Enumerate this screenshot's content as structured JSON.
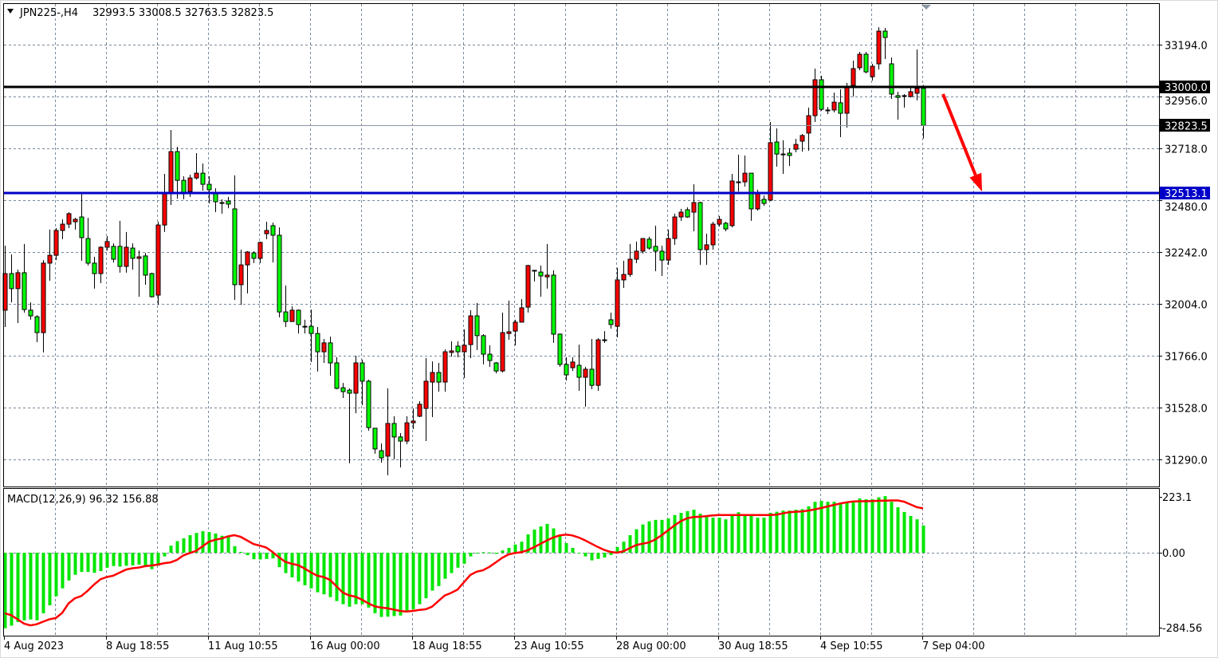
{
  "header": {
    "symbol_timeframe": "JPN225-,H4",
    "ohlc": "32993.5 33008.5 32763.5 32823.5"
  },
  "macd_header": {
    "label": "MACD(12,26,9) 96.32 156.88"
  },
  "colors": {
    "bull_candle": "#ff0000",
    "bear_candle": "#00ff00",
    "resistance_line": "#000000",
    "support_line": "#0000c8",
    "macd_histogram": "#00e600",
    "signal_line": "#ff0000",
    "arrow": "#ff0000",
    "grid": "#77889a"
  },
  "chart_data": [
    {
      "type": "candlestick",
      "symbol": "JPN225-",
      "timeframe": "H4",
      "ylim": [
        31180,
        33399
      ],
      "y_ticks": [
        "33194.0",
        "32956.0",
        "32718.0",
        "32480.0",
        "32242.0",
        "32004.0",
        "31766.0",
        "31528.0",
        "31290.0"
      ],
      "x_ticks": [
        "4 Aug 2023",
        "8 Aug 18:55",
        "11 Aug 10:55",
        "16 Aug 00:00",
        "18 Aug 18:55",
        "23 Aug 10:55",
        "28 Aug 00:00",
        "30 Aug 18:55",
        "4 Sep 10:55",
        "7 Sep 04:00"
      ],
      "x_tick_every_bars": 16,
      "grid": true,
      "horizontal_lines": [
        {
          "name": "resistance",
          "price": 33000.0,
          "label": "33000.0",
          "color": "#000000"
        },
        {
          "name": "support",
          "price": 32513.1,
          "label": "32513.1",
          "color": "#0000c8"
        }
      ],
      "bid_line": {
        "price": 32823.5,
        "label": "32823.5"
      },
      "arrow": {
        "from_bar": 147,
        "from_price": 32967,
        "to_bar": 153,
        "to_price": 32520,
        "color": "#ff0000"
      },
      "candles_ohlc": [
        [
          31975,
          32271,
          31898,
          32143
        ],
        [
          32143,
          32231,
          32011,
          32074
        ],
        [
          32074,
          32161,
          31916,
          32147
        ],
        [
          32147,
          32279,
          31964,
          31978
        ],
        [
          31975,
          32011,
          31931,
          31949
        ],
        [
          31945,
          31952,
          31828,
          31872
        ],
        [
          31872,
          32205,
          31781,
          32191
        ],
        [
          32191,
          32345,
          32110,
          32227
        ],
        [
          32227,
          32352,
          32205,
          32341
        ],
        [
          32341,
          32392,
          32301,
          32370
        ],
        [
          32370,
          32425,
          32352,
          32418
        ],
        [
          32381,
          32399,
          32345,
          32392
        ],
        [
          32403,
          32513,
          32202,
          32308
        ],
        [
          32304,
          32399,
          32180,
          32191
        ],
        [
          32191,
          32220,
          32074,
          32143
        ],
        [
          32143,
          32268,
          32099,
          32264
        ],
        [
          32264,
          32315,
          32249,
          32290
        ],
        [
          32268,
          32282,
          32194,
          32209
        ],
        [
          32268,
          32385,
          32147,
          32176
        ],
        [
          32176,
          32334,
          32147,
          32264
        ],
        [
          32260,
          32282,
          32161,
          32213
        ],
        [
          32213,
          32249,
          32037,
          32220
        ],
        [
          32224,
          32238,
          32092,
          32136
        ],
        [
          32143,
          32147,
          32033,
          32037
        ],
        [
          32044,
          32381,
          32000,
          32366
        ],
        [
          32366,
          32601,
          32334,
          32509
        ],
        [
          32509,
          32802,
          32458,
          32703
        ],
        [
          32703,
          32725,
          32487,
          32571
        ],
        [
          32571,
          32590,
          32484,
          32509
        ],
        [
          32520,
          32597,
          32495,
          32582
        ],
        [
          32582,
          32696,
          32575,
          32604
        ],
        [
          32604,
          32648,
          32524,
          32553
        ],
        [
          32553,
          32590,
          32465,
          32528
        ],
        [
          32509,
          32535,
          32425,
          32473
        ],
        [
          32469,
          32484,
          32418,
          32469
        ],
        [
          32476,
          32495,
          32443,
          32462
        ],
        [
          32440,
          32594,
          32022,
          32092
        ],
        [
          32092,
          32253,
          32000,
          32183
        ],
        [
          32183,
          32246,
          32052,
          32242
        ],
        [
          32238,
          32246,
          32191,
          32213
        ],
        [
          32213,
          32290,
          32191,
          32286
        ],
        [
          32326,
          32381,
          32301,
          32341
        ],
        [
          32363,
          32377,
          32194,
          32319
        ],
        [
          32319,
          32355,
          31942,
          31967
        ],
        [
          31967,
          32088,
          31898,
          31923
        ],
        [
          31923,
          31993,
          31923,
          31975
        ],
        [
          31975,
          31978,
          31868,
          31909
        ],
        [
          31901,
          31931,
          31868,
          31901
        ],
        [
          31901,
          31978,
          31737,
          31868
        ],
        [
          31868,
          31898,
          31693,
          31784
        ],
        [
          31784,
          31843,
          31733,
          31825
        ],
        [
          31825,
          31854,
          31674,
          31733
        ],
        [
          31733,
          31759,
          31612,
          31616
        ],
        [
          31619,
          31641,
          31572,
          31601
        ],
        [
          31608,
          31616,
          31272,
          31594
        ],
        [
          31594,
          31766,
          31502,
          31733
        ],
        [
          31733,
          31748,
          31539,
          31649
        ],
        [
          31649,
          31656,
          31422,
          31436
        ],
        [
          31433,
          31433,
          31316,
          31338
        ],
        [
          31330,
          31363,
          31275,
          31297
        ],
        [
          31305,
          31616,
          31217,
          31455
        ],
        [
          31455,
          31488,
          31290,
          31393
        ],
        [
          31393,
          31411,
          31253,
          31374
        ],
        [
          31374,
          31488,
          31360,
          31458
        ],
        [
          31458,
          31524,
          31429,
          31466
        ],
        [
          31488,
          31557,
          31484,
          31543
        ],
        [
          31524,
          31755,
          31374,
          31649
        ],
        [
          31645,
          31740,
          31484,
          31689
        ],
        [
          31689,
          31733,
          31601,
          31645
        ],
        [
          31645,
          31795,
          31601,
          31784
        ],
        [
          31781,
          31832,
          31762,
          31788
        ],
        [
          31810,
          31832,
          31759,
          31784
        ],
        [
          31784,
          31887,
          31664,
          31814
        ],
        [
          31817,
          31975,
          31755,
          31949
        ],
        [
          31949,
          32008,
          31792,
          31858
        ],
        [
          31858,
          31865,
          31726,
          31773
        ],
        [
          31773,
          31814,
          31715,
          31744
        ],
        [
          31733,
          31737,
          31685,
          31696
        ],
        [
          31696,
          31964,
          31689,
          31872
        ],
        [
          31868,
          32019,
          31839,
          31876
        ],
        [
          31879,
          31931,
          31814,
          31920
        ],
        [
          31920,
          32026,
          31920,
          31986
        ],
        [
          31989,
          32183,
          31964,
          32180
        ],
        [
          32158,
          32158,
          32107,
          32158
        ],
        [
          32150,
          32180,
          32037,
          32132
        ],
        [
          32128,
          32279,
          32074,
          32136
        ],
        [
          32136,
          32158,
          31825,
          31865
        ],
        [
          31865,
          31868,
          31715,
          31726
        ],
        [
          31726,
          31759,
          31652,
          31678
        ],
        [
          31711,
          31759,
          31696,
          31737
        ],
        [
          31722,
          31817,
          31605,
          31667
        ],
        [
          31667,
          31715,
          31532,
          31704
        ],
        [
          31704,
          31843,
          31612,
          31630
        ],
        [
          31630,
          31846,
          31605,
          31839
        ],
        [
          31839,
          31879,
          31825,
          31839
        ],
        [
          31931,
          31964,
          31890,
          31909
        ],
        [
          31901,
          32169,
          31850,
          32114
        ],
        [
          32114,
          32202,
          32077,
          32139
        ],
        [
          32139,
          32279,
          32128,
          32209
        ],
        [
          32209,
          32290,
          32191,
          32246
        ],
        [
          32246,
          32293,
          32235,
          32304
        ],
        [
          32301,
          32312,
          32253,
          32260
        ],
        [
          32268,
          32363,
          32154,
          32246
        ],
        [
          32246,
          32271,
          32132,
          32205
        ],
        [
          32205,
          32345,
          32183,
          32304
        ],
        [
          32304,
          32418,
          32275,
          32403
        ],
        [
          32403,
          32440,
          32385,
          32425
        ],
        [
          32436,
          32447,
          32399,
          32403
        ],
        [
          32425,
          32553,
          32337,
          32469
        ],
        [
          32469,
          32473,
          32183,
          32253
        ],
        [
          32253,
          32326,
          32183,
          32275
        ],
        [
          32275,
          32381,
          32253,
          32370
        ],
        [
          32370,
          32407,
          32359,
          32392
        ],
        [
          32374,
          32381,
          32337,
          32348
        ],
        [
          32363,
          32601,
          32355,
          32568
        ],
        [
          32564,
          32689,
          32520,
          32564
        ],
        [
          32564,
          32685,
          32542,
          32604
        ],
        [
          32604,
          32604,
          32385,
          32440
        ],
        [
          32440,
          32528,
          32432,
          32513
        ],
        [
          32484,
          32502,
          32454,
          32465
        ],
        [
          32480,
          32839,
          32476,
          32744
        ],
        [
          32747,
          32810,
          32634,
          32692
        ],
        [
          32692,
          32755,
          32601,
          32692
        ],
        [
          32696,
          32718,
          32637,
          32685
        ],
        [
          32714,
          32762,
          32700,
          32736
        ],
        [
          32751,
          32784,
          32703,
          32777
        ],
        [
          32788,
          32905,
          32707,
          32868
        ],
        [
          32868,
          33084,
          32839,
          33033
        ],
        [
          33033,
          33051,
          32890,
          32897
        ],
        [
          32894,
          32908,
          32875,
          32894
        ],
        [
          32894,
          32974,
          32883,
          32930
        ],
        [
          32927,
          32989,
          32769,
          32879
        ],
        [
          32879,
          33018,
          32813,
          32996
        ],
        [
          33007,
          33121,
          32956,
          33084
        ],
        [
          33088,
          33161,
          33077,
          33150
        ],
        [
          33150,
          33161,
          33062,
          33069
        ],
        [
          33047,
          33106,
          33029,
          33095
        ],
        [
          33106,
          33274,
          33080,
          33256
        ],
        [
          33256,
          33271,
          33128,
          33227
        ],
        [
          33106,
          33135,
          32945,
          32967
        ],
        [
          32960,
          32978,
          32850,
          32952
        ],
        [
          32960,
          32967,
          32905,
          32960
        ],
        [
          32956,
          33000,
          32952,
          32978
        ],
        [
          32971,
          33172,
          32938,
          32993
        ],
        [
          32993.5,
          33008.5,
          32763.5,
          32823.5
        ]
      ]
    },
    {
      "type": "bar+line",
      "indicator": "MACD(12,26,9)",
      "macd_last": 96.32,
      "signal_last": 156.88,
      "ylim": [
        -284.56,
        223.1
      ],
      "y_ticks": [
        "223.1",
        "0.00",
        "-284.56"
      ],
      "macd_histogram": [
        -267,
        -258,
        -245,
        -239,
        -236,
        -239,
        -214,
        -186,
        -154,
        -126,
        -98,
        -78,
        -68,
        -68,
        -71,
        -65,
        -53,
        -47,
        -49,
        -46,
        -45,
        -42,
        -48,
        -58,
        -46,
        -13,
        25,
        41,
        51,
        62,
        70,
        76,
        73,
        68,
        60,
        55,
        23,
        3,
        -9,
        -23,
        -24,
        -22,
        -20,
        -51,
        -72,
        -87,
        -102,
        -115,
        -126,
        -140,
        -147,
        -157,
        -171,
        -182,
        -191,
        -182,
        -182,
        -194,
        -214,
        -227,
        -226,
        -224,
        -222,
        -210,
        -200,
        -182,
        -161,
        -134,
        -118,
        -92,
        -72,
        -53,
        -39,
        -13,
        -1,
        2,
        1,
        -4,
        8,
        17,
        29,
        39,
        65,
        82,
        93,
        102,
        86,
        60,
        34,
        17,
        -1,
        -13,
        -27,
        -22,
        -17,
        -8,
        20,
        39,
        62,
        83,
        100,
        111,
        116,
        116,
        121,
        133,
        141,
        147,
        152,
        138,
        131,
        124,
        124,
        118,
        130,
        143,
        136,
        130,
        124,
        124,
        141,
        145,
        149,
        149,
        152,
        154,
        164,
        180,
        183,
        180,
        180,
        175,
        176,
        182,
        192,
        189,
        189,
        196,
        200,
        180,
        161,
        144,
        130,
        118,
        96.32
      ],
      "signal_points": [
        [
          0,
          -214
        ],
        [
          4,
          -257
        ],
        [
          8,
          -231
        ],
        [
          11,
          -161
        ],
        [
          16,
          -86
        ],
        [
          20,
          -55
        ],
        [
          23,
          -45
        ],
        [
          26,
          -34
        ],
        [
          29,
          -1
        ],
        [
          33,
          46
        ],
        [
          36,
          62
        ],
        [
          40,
          25
        ],
        [
          45,
          -39
        ],
        [
          50,
          -86
        ],
        [
          54,
          -151
        ],
        [
          59,
          -194
        ],
        [
          63,
          -208
        ],
        [
          66,
          -200
        ],
        [
          70,
          -142
        ],
        [
          74,
          -67
        ],
        [
          80,
          -1
        ],
        [
          88,
          64
        ],
        [
          96,
          0
        ],
        [
          100,
          32
        ],
        [
          108,
          126
        ],
        [
          112,
          133
        ],
        [
          120,
          133
        ],
        [
          124,
          145
        ],
        [
          134,
          182
        ],
        [
          140,
          185
        ],
        [
          144,
          156.88
        ]
      ]
    }
  ]
}
